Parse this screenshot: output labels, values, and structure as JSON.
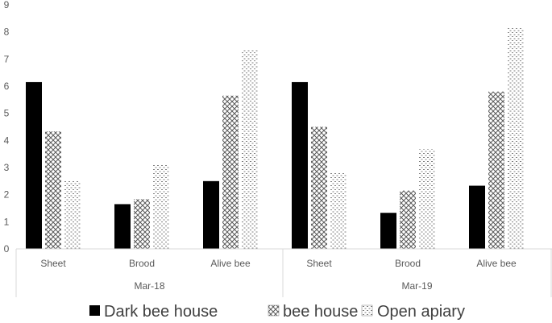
{
  "chart_data": {
    "type": "bar",
    "groups": [
      {
        "label": "Mar-18",
        "categories": [
          "Sheet",
          "Brood",
          "Alive bee"
        ]
      },
      {
        "label": "Mar-19",
        "categories": [
          "Sheet",
          "Brood",
          "Alive bee"
        ]
      }
    ],
    "series": [
      {
        "name": "Dark bee house",
        "pattern": "solid",
        "color": "#000000",
        "values": [
          6.15,
          1.65,
          2.5,
          6.15,
          1.33,
          2.33
        ]
      },
      {
        "name": "bee house",
        "pattern": "crosshatch",
        "color": "#7f7f7f",
        "values": [
          4.33,
          1.83,
          5.65,
          4.5,
          2.15,
          5.8
        ]
      },
      {
        "name": "Open apiary",
        "pattern": "dashes",
        "color": "#7f7f7f",
        "values": [
          2.5,
          3.1,
          7.33,
          2.8,
          3.67,
          8.15
        ]
      }
    ],
    "ylim": [
      0,
      9
    ],
    "yticks": [
      "0",
      "1",
      "2",
      "3",
      "4",
      "5",
      "6",
      "7",
      "8",
      "9"
    ],
    "grid": false,
    "legend_position": "bottom"
  }
}
